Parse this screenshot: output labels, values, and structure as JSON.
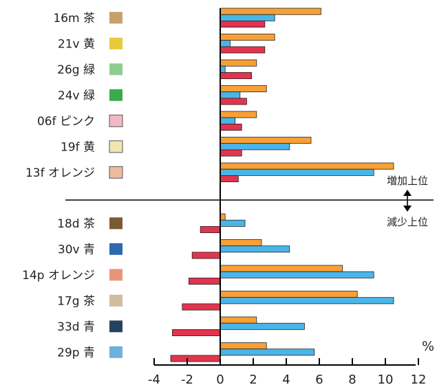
{
  "chart_data": {
    "type": "bar",
    "orientation": "horizontal",
    "unit_label": "%",
    "xlim": [
      -4,
      12
    ],
    "x_ticks": [
      "-4",
      "-2",
      "0",
      "2",
      "4",
      "6",
      "8",
      "10",
      "12"
    ],
    "grid": false,
    "divider_labels": {
      "up": "増加上位",
      "down": "減少上位"
    },
    "bar_colors": [
      "#f7a035",
      "#4ab5e8",
      "#e3344f"
    ],
    "groups": [
      {
        "name": "増加上位",
        "categories": [
          {
            "label": "16m 茶",
            "swatch": "#c8a06a",
            "values": [
              6.1,
              3.3,
              2.7
            ]
          },
          {
            "label": "21v 黄",
            "swatch": "#e8c93a",
            "values": [
              3.3,
              0.6,
              2.7
            ]
          },
          {
            "label": "26g 緑",
            "swatch": "#8fcc8f",
            "values": [
              2.2,
              0.3,
              1.9
            ]
          },
          {
            "label": "24v 緑",
            "swatch": "#3aaa4a",
            "values": [
              2.8,
              1.2,
              1.6
            ]
          },
          {
            "label": "06f ピンク",
            "swatch": "#f2b8c6",
            "values": [
              2.2,
              0.9,
              1.3
            ]
          },
          {
            "label": "19f 黄",
            "swatch": "#f1e6b0",
            "values": [
              5.5,
              4.2,
              1.3
            ]
          },
          {
            "label": "13f オレンジ",
            "swatch": "#eebaa0",
            "values": [
              10.5,
              9.3,
              1.1
            ]
          }
        ]
      },
      {
        "name": "減少上位",
        "categories": [
          {
            "label": "18d 茶",
            "swatch": "#7a5a32",
            "values": [
              0.3,
              1.5,
              -1.2
            ]
          },
          {
            "label": "30v 青",
            "swatch": "#2f69ad",
            "values": [
              2.5,
              4.2,
              -1.7
            ]
          },
          {
            "label": "14p オレンジ",
            "swatch": "#e8957a",
            "values": [
              7.4,
              9.3,
              -1.9
            ]
          },
          {
            "label": "17g 茶",
            "swatch": "#d2bc9e",
            "values": [
              8.3,
              10.5,
              -2.3
            ]
          },
          {
            "label": "33d 青",
            "swatch": "#24435e",
            "values": [
              2.2,
              5.1,
              -2.9
            ]
          },
          {
            "label": "29p 青",
            "swatch": "#6cb2dd",
            "values": [
              2.8,
              5.7,
              -3.0
            ]
          }
        ]
      }
    ]
  }
}
